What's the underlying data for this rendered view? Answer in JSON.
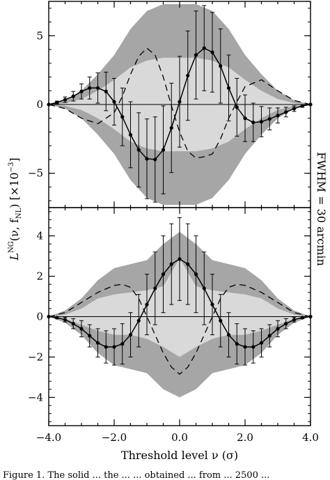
{
  "chart_data": [
    {
      "panel": "top",
      "type": "line",
      "xlim": [
        -4.0,
        4.0
      ],
      "ylim": [
        -7.5,
        7.5
      ],
      "yticks": [
        -5,
        0,
        5
      ],
      "ytick_labels": [
        "−5",
        "0",
        "5"
      ],
      "grid": false,
      "zero_line": true,
      "ylabel_parts": [
        "L",
        "NG",
        "(ν, f",
        "NL",
        ") [×10",
        "−3",
        "]"
      ],
      "band_outer": {
        "x": [
          -4.0,
          -3.5,
          -3.0,
          -2.5,
          -2.0,
          -1.5,
          -1.0,
          -0.5,
          0.0,
          0.5,
          1.0,
          1.5,
          2.0,
          2.5,
          3.0,
          3.5,
          4.0
        ],
        "lower": [
          0,
          -0.3,
          -1.0,
          -2.2,
          -3.6,
          -5.5,
          -6.8,
          -7.3,
          -7.3,
          -7.3,
          -6.8,
          -5.5,
          -3.6,
          -2.2,
          -1.0,
          -0.3,
          0
        ],
        "upper": [
          0,
          0.3,
          1.0,
          2.2,
          3.6,
          5.5,
          6.8,
          7.3,
          7.3,
          7.3,
          6.8,
          5.5,
          3.6,
          2.2,
          1.0,
          0.3,
          0
        ]
      },
      "band_inner": {
        "x": [
          -4.0,
          -3.5,
          -3.0,
          -2.5,
          -2.0,
          -1.5,
          -1.0,
          -0.5,
          0.0,
          0.5,
          1.0,
          1.5,
          2.0,
          2.5,
          3.0,
          3.5,
          4.0
        ],
        "lower": [
          0,
          -0.1,
          -0.4,
          -1.0,
          -1.8,
          -2.7,
          -3.2,
          -3.4,
          -3.4,
          -3.4,
          -3.2,
          -2.7,
          -1.8,
          -1.0,
          -0.4,
          -0.1,
          0
        ],
        "upper": [
          0,
          0.1,
          0.4,
          1.0,
          1.8,
          2.7,
          3.2,
          3.4,
          3.4,
          3.4,
          3.2,
          2.7,
          1.8,
          1.0,
          0.4,
          0.1,
          0
        ]
      },
      "series": [
        {
          "style": "solid-line-with-points",
          "x": [
            -4.0,
            -3.75,
            -3.5,
            -3.25,
            -3.0,
            -2.75,
            -2.5,
            -2.25,
            -2.0,
            -1.75,
            -1.5,
            -1.25,
            -1.0,
            -0.75,
            -0.5,
            -0.25,
            0.0,
            0.25,
            0.5,
            0.75,
            1.0,
            1.25,
            1.5,
            1.75,
            2.0,
            2.25,
            2.5,
            2.75,
            3.0,
            3.25,
            3.5,
            3.75,
            4.0
          ],
          "y": [
            0.0,
            0.15,
            0.35,
            0.6,
            0.95,
            1.2,
            1.2,
            0.95,
            0.2,
            -0.9,
            -2.2,
            -3.3,
            -3.95,
            -4.0,
            -3.3,
            -1.7,
            0.2,
            2.1,
            3.6,
            4.1,
            3.8,
            2.8,
            1.2,
            -0.2,
            -1.0,
            -1.3,
            -1.25,
            -1.05,
            -0.8,
            -0.55,
            -0.3,
            -0.1,
            0.0
          ],
          "err": [
            0.0,
            0.1,
            0.2,
            0.35,
            0.55,
            0.8,
            1.1,
            1.4,
            1.7,
            2.1,
            2.4,
            2.7,
            2.9,
            3.1,
            3.2,
            3.25,
            3.3,
            3.25,
            3.2,
            3.1,
            2.9,
            2.7,
            2.4,
            2.1,
            1.7,
            1.4,
            1.1,
            0.8,
            0.55,
            0.35,
            0.2,
            0.1,
            0.0
          ]
        },
        {
          "style": "dashed-line",
          "x": [
            -4.0,
            -3.5,
            -3.0,
            -2.5,
            -2.0,
            -1.75,
            -1.5,
            -1.25,
            -1.0,
            -0.75,
            -0.5,
            -0.25,
            0.0,
            0.25,
            0.5,
            0.75,
            1.0,
            1.25,
            1.5,
            1.75,
            2.0,
            2.5,
            3.0,
            3.5,
            4.0
          ],
          "y": [
            0.0,
            -0.3,
            -1.0,
            -1.4,
            -0.6,
            0.6,
            2.2,
            3.5,
            4.1,
            3.6,
            2.0,
            -0.1,
            -2.0,
            -3.4,
            -3.9,
            -3.8,
            -3.6,
            -2.5,
            -1.0,
            0.2,
            1.3,
            1.8,
            1.0,
            0.3,
            0.0
          ]
        }
      ]
    },
    {
      "panel": "bottom",
      "type": "line",
      "xlim": [
        -4.0,
        4.0
      ],
      "ylim": [
        -5.4,
        5.4
      ],
      "yticks": [
        -4,
        -2,
        0,
        2,
        4
      ],
      "ytick_labels": [
        "−4",
        "−2",
        "0",
        "2",
        "4"
      ],
      "xticks": [
        -4.0,
        -2.0,
        0.0,
        2.0,
        4.0
      ],
      "xtick_labels": [
        "−4.0",
        "−2.0",
        "0.0",
        "2.0",
        "4.0"
      ],
      "grid": false,
      "zero_line": true,
      "xlabel": "Threshold level ν (σ)",
      "band_outer": {
        "x": [
          -4.0,
          -3.5,
          -3.0,
          -2.5,
          -2.0,
          -1.5,
          -1.0,
          -0.5,
          0.0,
          0.5,
          1.0,
          1.5,
          2.0,
          2.5,
          3.0,
          3.5,
          4.0
        ],
        "lower": [
          0,
          -0.3,
          -0.9,
          -1.8,
          -2.4,
          -2.6,
          -2.8,
          -3.6,
          -4.0,
          -3.6,
          -2.8,
          -2.6,
          -2.4,
          -1.8,
          -0.9,
          -0.3,
          0
        ],
        "upper": [
          0,
          0.3,
          0.9,
          1.8,
          2.4,
          2.6,
          2.8,
          3.6,
          4.2,
          3.6,
          2.8,
          2.6,
          2.4,
          1.8,
          0.9,
          0.3,
          0
        ]
      },
      "band_inner": {
        "x": [
          -4.0,
          -3.5,
          -3.0,
          -2.5,
          -2.0,
          -1.5,
          -1.0,
          -0.5,
          0.0,
          0.5,
          1.0,
          1.5,
          2.0,
          2.5,
          3.0,
          3.5,
          4.0
        ],
        "lower": [
          0,
          -0.1,
          -0.4,
          -0.7,
          -0.9,
          -0.9,
          -1.1,
          -1.5,
          -2.0,
          -1.5,
          -1.1,
          -0.9,
          -0.9,
          -0.7,
          -0.4,
          -0.1,
          0
        ],
        "upper": [
          0,
          0.1,
          0.4,
          0.9,
          1.1,
          1.2,
          1.3,
          1.5,
          2.9,
          1.5,
          1.3,
          1.2,
          1.1,
          0.9,
          0.4,
          0.1,
          0
        ]
      },
      "series": [
        {
          "style": "solid-line-with-points",
          "x": [
            -4.0,
            -3.75,
            -3.5,
            -3.25,
            -3.0,
            -2.75,
            -2.5,
            -2.25,
            -2.0,
            -1.75,
            -1.5,
            -1.25,
            -1.0,
            -0.75,
            -0.5,
            -0.25,
            0.0,
            0.25,
            0.5,
            0.75,
            1.0,
            1.25,
            1.5,
            1.75,
            2.0,
            2.25,
            2.5,
            2.75,
            3.0,
            3.25,
            3.5,
            3.75,
            4.0
          ],
          "y": [
            0.0,
            -0.05,
            -0.15,
            -0.35,
            -0.6,
            -0.95,
            -1.3,
            -1.5,
            -1.5,
            -1.35,
            -0.9,
            -0.2,
            0.6,
            1.4,
            2.1,
            2.6,
            2.85,
            2.6,
            2.1,
            1.4,
            0.6,
            -0.2,
            -0.9,
            -1.35,
            -1.5,
            -1.5,
            -1.3,
            -0.95,
            -0.6,
            -0.35,
            -0.15,
            -0.05,
            0.0
          ],
          "err": [
            0.0,
            0.05,
            0.12,
            0.25,
            0.4,
            0.55,
            0.7,
            0.8,
            0.9,
            1.0,
            1.1,
            1.3,
            1.5,
            1.8,
            1.9,
            2.0,
            2.05,
            2.0,
            1.9,
            1.8,
            1.5,
            1.3,
            1.1,
            1.0,
            0.9,
            0.8,
            0.7,
            0.55,
            0.4,
            0.25,
            0.12,
            0.05,
            0.0
          ]
        },
        {
          "style": "dashed-line",
          "x": [
            -4.0,
            -3.5,
            -3.0,
            -2.5,
            -2.0,
            -1.75,
            -1.5,
            -1.25,
            -1.0,
            -0.75,
            -0.5,
            -0.25,
            0.0,
            0.25,
            0.5,
            0.75,
            1.0,
            1.25,
            1.5,
            1.75,
            2.0,
            2.5,
            3.0,
            3.5,
            4.0
          ],
          "y": [
            0.0,
            0.2,
            0.7,
            1.2,
            1.55,
            1.6,
            1.45,
            0.9,
            0.0,
            -0.9,
            -1.8,
            -2.5,
            -2.85,
            -2.5,
            -1.8,
            -0.9,
            0.0,
            0.9,
            1.45,
            1.6,
            1.55,
            1.2,
            0.7,
            0.2,
            0.0
          ]
        }
      ]
    }
  ],
  "side_label": "FWHM = 30 arcmin",
  "caption_fragment": "Figure 1. The solid ... the ... ... obtained ... from ... 2500 ..."
}
